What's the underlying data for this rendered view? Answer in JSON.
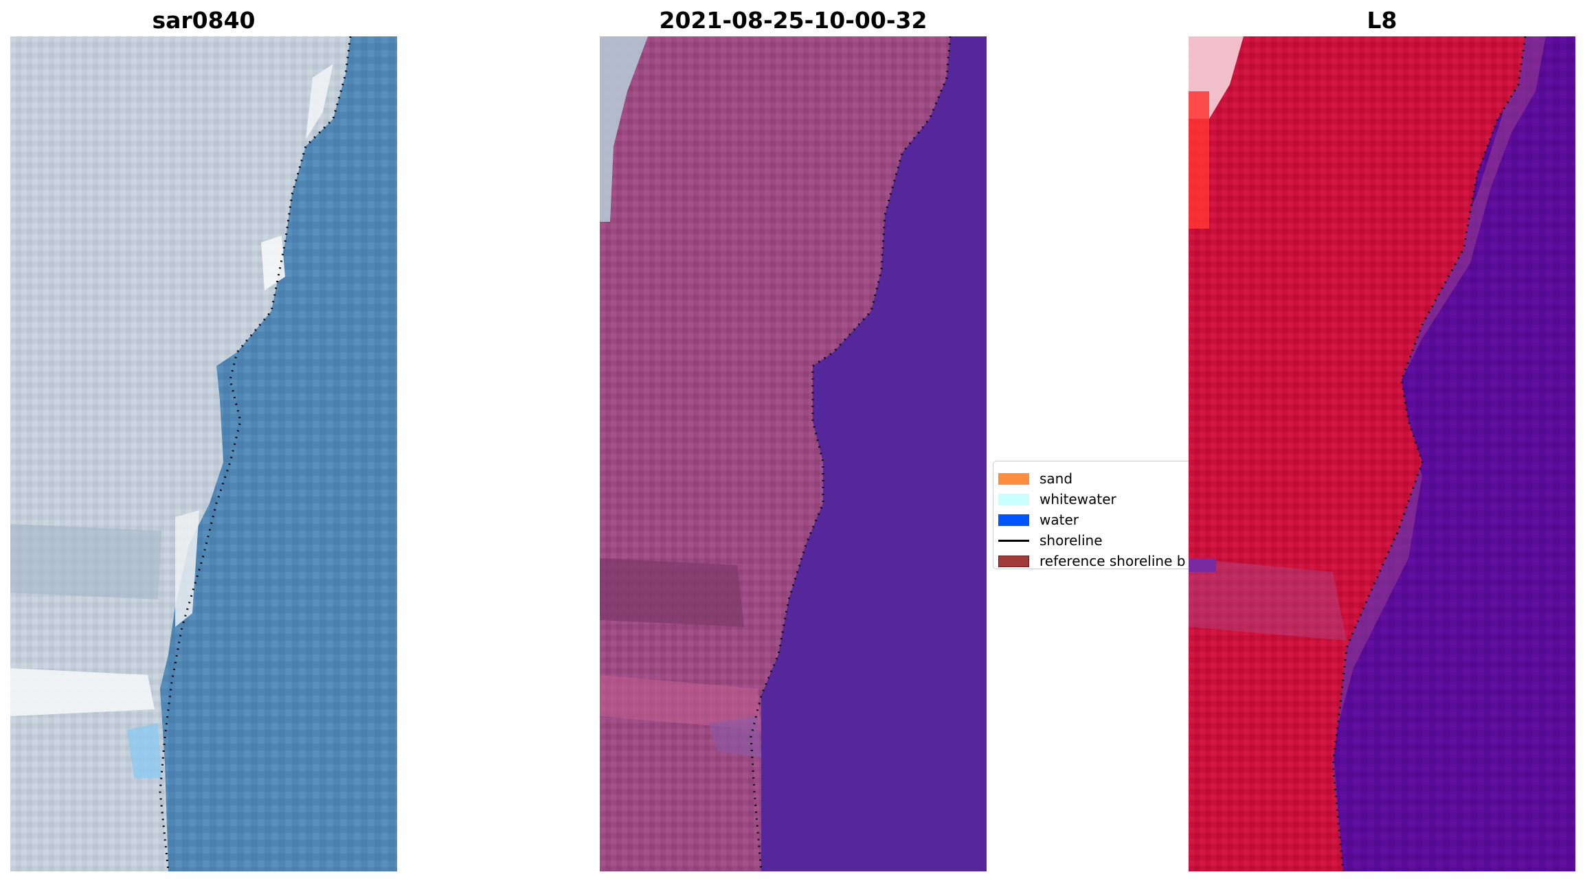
{
  "panels": [
    {
      "title": "sar0840",
      "kind": "true-color image"
    },
    {
      "title": "2021-08-25-10-00-32",
      "kind": "classified image"
    },
    {
      "title": "L8",
      "kind": "false-color image"
    }
  ],
  "legend": {
    "items": [
      {
        "label": "sand",
        "type": "patch",
        "color": "#ff8c3f"
      },
      {
        "label": "whitewater",
        "type": "patch",
        "color": "#c8ffff"
      },
      {
        "label": "water",
        "type": "patch",
        "color": "#0055ff"
      },
      {
        "label": "shoreline",
        "type": "line",
        "color": "#000000"
      },
      {
        "label": "reference shoreline b",
        "type": "patch",
        "color": "#a33a3a",
        "edge": "#6a1a1a"
      }
    ]
  },
  "colors": {
    "sar_land": "#c8d2dc",
    "sar_water": "#4f86b4",
    "class_land": "#9b4a82",
    "class_water": "#55279a",
    "l8_land": "#c8103a",
    "l8_water": "#5a0c98",
    "shoreline_dots": "#000000"
  }
}
